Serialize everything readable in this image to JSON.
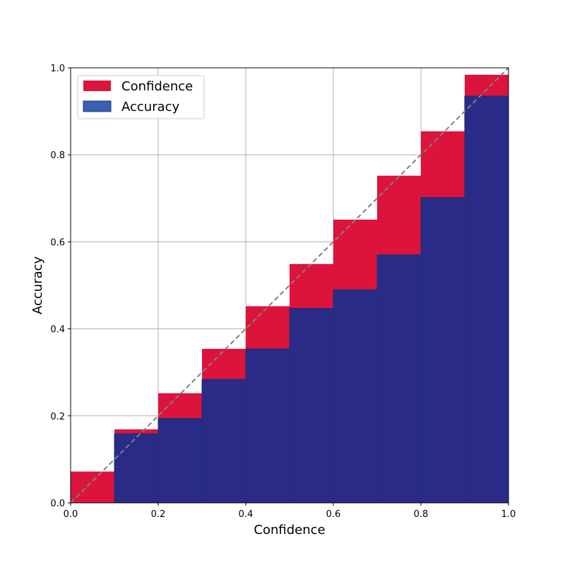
{
  "chart_data": {
    "type": "bar",
    "xlabel": "Confidence",
    "ylabel": "Accuracy",
    "xlim": [
      0.0,
      1.0
    ],
    "ylim": [
      0.0,
      1.0
    ],
    "grid": true,
    "legend_position": "top-left",
    "xticks": [
      "0.0",
      "0.2",
      "0.4",
      "0.6",
      "0.8",
      "1.0"
    ],
    "yticks": [
      "0.0",
      "0.2",
      "0.4",
      "0.6",
      "0.8",
      "1.0"
    ],
    "bins": [
      [
        0.0,
        0.1
      ],
      [
        0.1,
        0.2
      ],
      [
        0.2,
        0.3
      ],
      [
        0.3,
        0.4
      ],
      [
        0.4,
        0.5
      ],
      [
        0.5,
        0.6
      ],
      [
        0.6,
        0.7
      ],
      [
        0.7,
        0.8
      ],
      [
        0.8,
        0.9
      ],
      [
        0.9,
        1.0
      ]
    ],
    "series": [
      {
        "name": "Confidence",
        "color": "#dc143c",
        "values": [
          0.072,
          0.169,
          0.252,
          0.354,
          0.452,
          0.549,
          0.651,
          0.752,
          0.854,
          0.984
        ]
      },
      {
        "name": "Accuracy",
        "color": "#2a2b86",
        "legend_color": "#3a5fb0",
        "values": [
          0.0,
          0.159,
          0.194,
          0.284,
          0.354,
          0.447,
          0.49,
          0.57,
          0.702,
          0.935
        ]
      }
    ],
    "reference_line": {
      "from": [
        0.0,
        0.0
      ],
      "to": [
        1.0,
        1.0
      ],
      "color": "#808080",
      "style": "dashed"
    }
  }
}
